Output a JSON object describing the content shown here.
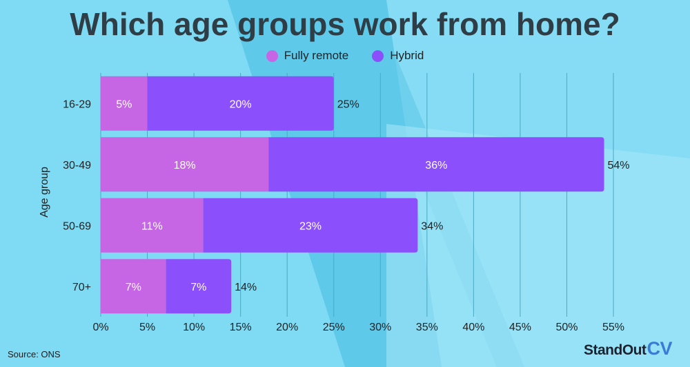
{
  "title": "Which age groups work from home?",
  "source": "Source: ONS",
  "logo": {
    "main": "StandOut",
    "accent": "CV"
  },
  "colors": {
    "fully_remote": "#c666e4",
    "hybrid": "#8b50fb",
    "background": "#6fd0ee",
    "text": "#222222"
  },
  "chart_data": {
    "type": "bar",
    "orientation": "horizontal",
    "stacked": true,
    "title": "Which age groups work from home?",
    "ylabel": "Age group",
    "xlabel": "",
    "categories": [
      "16-29",
      "30-49",
      "50-69",
      "70+"
    ],
    "series": [
      {
        "name": "Fully remote",
        "values": [
          5,
          18,
          11,
          7
        ],
        "labels": [
          "5%",
          "18%",
          "11%",
          "7%"
        ]
      },
      {
        "name": "Hybrid",
        "values": [
          20,
          36,
          23,
          7
        ],
        "labels": [
          "20%",
          "36%",
          "23%",
          "7%"
        ]
      }
    ],
    "totals": [
      25,
      54,
      34,
      14
    ],
    "total_labels": [
      "25%",
      "54%",
      "34%",
      "14%"
    ],
    "xlim": [
      0,
      55
    ],
    "xticks": [
      0,
      5,
      10,
      15,
      20,
      25,
      30,
      35,
      40,
      45,
      50,
      55
    ],
    "xtick_labels": [
      "0%",
      "5%",
      "10%",
      "15%",
      "20%",
      "25%",
      "30%",
      "35%",
      "40%",
      "45%",
      "50%",
      "55%"
    ],
    "grid": true,
    "legend_position": "top"
  }
}
